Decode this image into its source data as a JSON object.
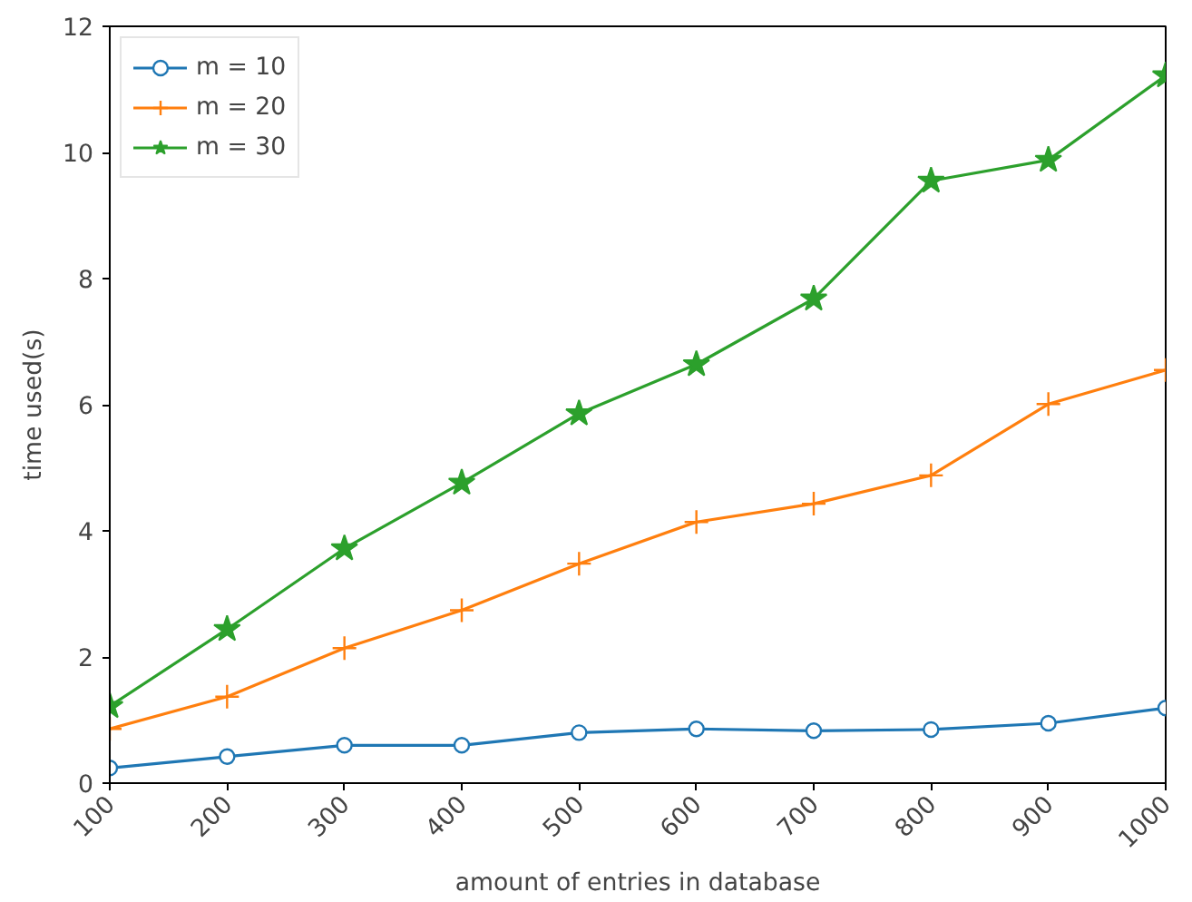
{
  "chart_data": {
    "type": "line",
    "xlabel": "amount of entries in database",
    "ylabel": "time used(s)",
    "x": [
      100,
      200,
      300,
      400,
      500,
      600,
      700,
      800,
      900,
      1000
    ],
    "series": [
      {
        "name": "m = 10",
        "color": "#1f77b4",
        "marker": "circle",
        "values": [
          0.24,
          0.42,
          0.6,
          0.6,
          0.8,
          0.86,
          0.83,
          0.85,
          0.95,
          1.19
        ]
      },
      {
        "name": "m = 20",
        "color": "#ff7f0e",
        "marker": "cross",
        "values": [
          0.86,
          1.37,
          2.14,
          2.74,
          3.48,
          4.14,
          4.43,
          4.88,
          6.01,
          6.55
        ]
      },
      {
        "name": "m = 30",
        "color": "#2ca02c",
        "marker": "star",
        "values": [
          1.22,
          2.44,
          3.72,
          4.76,
          5.86,
          6.64,
          7.68,
          9.55,
          9.88,
          11.22
        ]
      }
    ],
    "xlim": [
      100,
      1000
    ],
    "ylim": [
      0,
      12
    ],
    "xticks": [
      100,
      200,
      300,
      400,
      500,
      600,
      700,
      800,
      900,
      1000
    ],
    "yticks": [
      0,
      2,
      4,
      6,
      8,
      10,
      12
    ],
    "grid": false,
    "legend": "top left",
    "line_style": "solid"
  }
}
